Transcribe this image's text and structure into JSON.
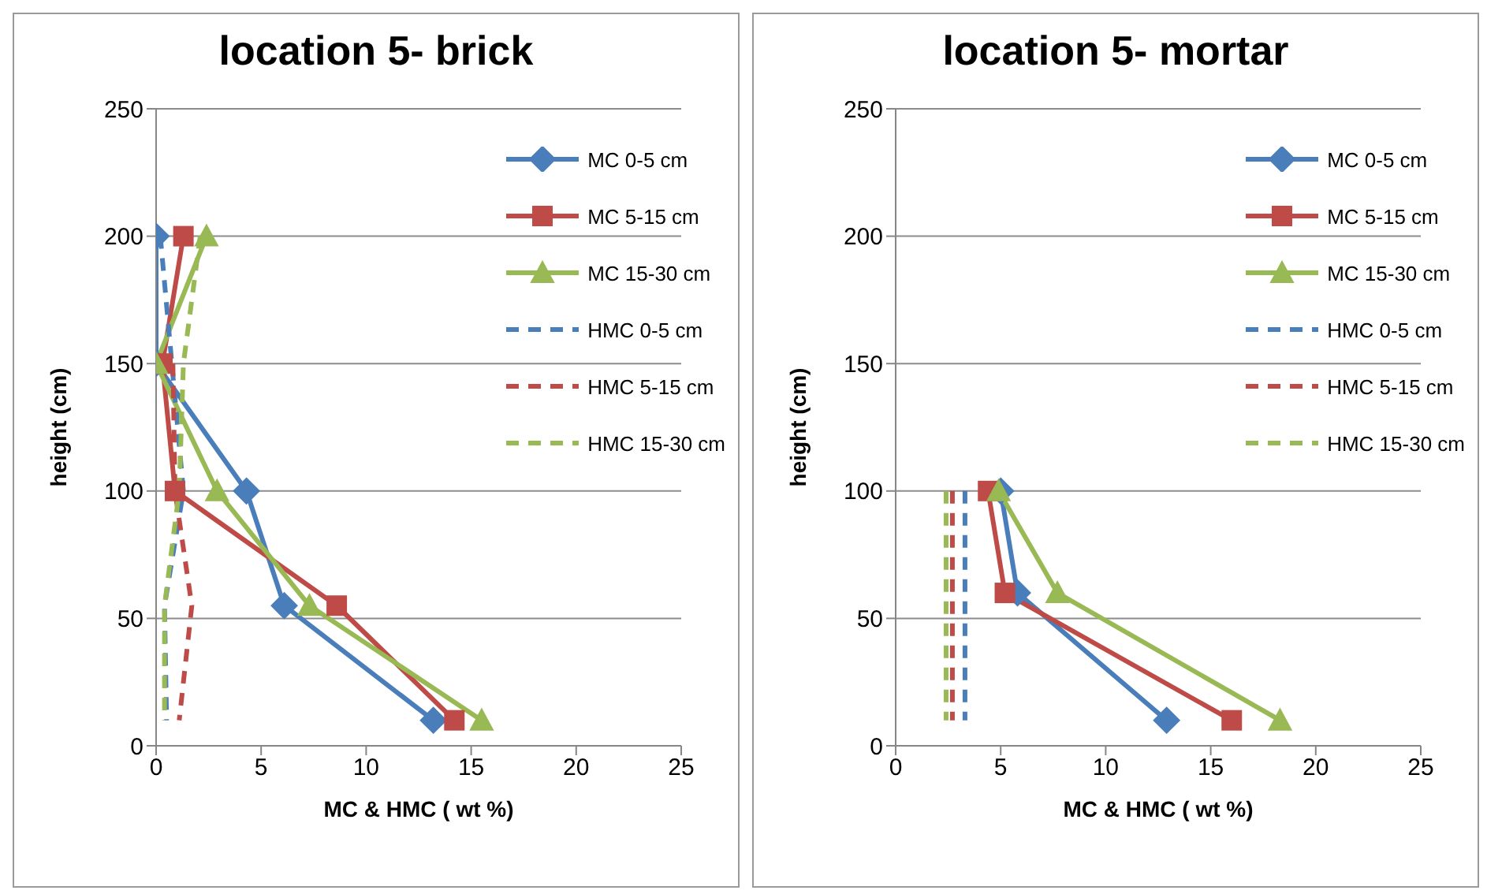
{
  "chart_data": [
    {
      "type": "line",
      "title": "location 5- brick",
      "xlabel": "MC & HMC (  wt  %)",
      "ylabel": "height (cm)",
      "xlim": [
        0,
        25
      ],
      "xticks": [
        0,
        5,
        10,
        15,
        20,
        25
      ],
      "ylim": [
        0,
        250
      ],
      "yticks": [
        0,
        50,
        100,
        150,
        200,
        250
      ],
      "grid": "y",
      "legend": "top right",
      "series": [
        {
          "name": "MC 0-5 cm",
          "color": "#4a7ebb",
          "marker": "diamond",
          "line_style": "solid",
          "x": [
            0,
            0,
            4.3,
            6.1,
            13.2
          ],
          "values": [
            200,
            150,
            100,
            55,
            10
          ]
        },
        {
          "name": "MC 5-15 cm",
          "color": "#be4b48",
          "marker": "square",
          "line_style": "solid",
          "x": [
            1.3,
            0.3,
            0.9,
            8.6,
            14.2
          ],
          "values": [
            200,
            150,
            100,
            55,
            10
          ]
        },
        {
          "name": "MC 15-30 cm",
          "color": "#98b954",
          "marker": "triangle",
          "line_style": "solid",
          "x": [
            2.4,
            0,
            2.9,
            7.3,
            15.5
          ],
          "values": [
            200,
            150,
            100,
            55,
            10
          ]
        },
        {
          "name": "HMC 0-5 cm",
          "color": "#4a7ebb",
          "marker": "none",
          "line_style": "dashed",
          "x": [
            0.2,
            null,
            1.3,
            0.4,
            0.5
          ],
          "values": [
            200,
            null,
            100,
            55,
            10
          ]
        },
        {
          "name": "HMC 5-15 cm",
          "color": "#be4b48",
          "marker": "none",
          "line_style": "dashed",
          "x": [
            null,
            0.8,
            0.9,
            1.7,
            1.1
          ],
          "values": [
            null,
            150,
            100,
            55,
            10
          ]
        },
        {
          "name": "HMC 15-30 cm",
          "color": "#98b954",
          "marker": "none",
          "line_style": "dashed",
          "x": [
            2.1,
            1.3,
            1.1,
            0.4,
            0.4
          ],
          "values": [
            200,
            150,
            100,
            55,
            10
          ]
        }
      ]
    },
    {
      "type": "line",
      "title": "location 5- mortar",
      "xlabel": "MC & HMC (  wt  %)",
      "ylabel": "height (cm)",
      "xlim": [
        0,
        25
      ],
      "xticks": [
        0,
        5,
        10,
        15,
        20,
        25
      ],
      "ylim": [
        0,
        250
      ],
      "yticks": [
        0,
        50,
        100,
        150,
        200,
        250
      ],
      "grid": "y",
      "legend": "top right",
      "series": [
        {
          "name": "MC 0-5 cm",
          "color": "#4a7ebb",
          "marker": "diamond",
          "line_style": "solid",
          "x": [
            5,
            5.8,
            12.9
          ],
          "values": [
            100,
            60,
            10
          ]
        },
        {
          "name": "MC 5-15 cm",
          "color": "#be4b48",
          "marker": "square",
          "line_style": "solid",
          "x": [
            4.4,
            5.2,
            16
          ],
          "values": [
            100,
            60,
            10
          ]
        },
        {
          "name": "MC 15-30 cm",
          "color": "#98b954",
          "marker": "triangle",
          "line_style": "solid",
          "x": [
            4.9,
            7.7,
            18.3
          ],
          "values": [
            100,
            60,
            10
          ]
        },
        {
          "name": "HMC 0-5 cm",
          "color": "#4a7ebb",
          "marker": "none",
          "line_style": "dashed",
          "x": [
            3.3,
            3.3,
            3.3
          ],
          "values": [
            100,
            60,
            10
          ]
        },
        {
          "name": "HMC 5-15 cm",
          "color": "#be4b48",
          "marker": "none",
          "line_style": "dashed",
          "x": [
            2.7,
            2.7,
            2.7
          ],
          "values": [
            100,
            60,
            10
          ]
        },
        {
          "name": "HMC 15-30 cm",
          "color": "#98b954",
          "marker": "none",
          "line_style": "dashed",
          "x": [
            2.4,
            2.4,
            2.4
          ],
          "values": [
            100,
            60,
            10
          ]
        }
      ]
    }
  ]
}
